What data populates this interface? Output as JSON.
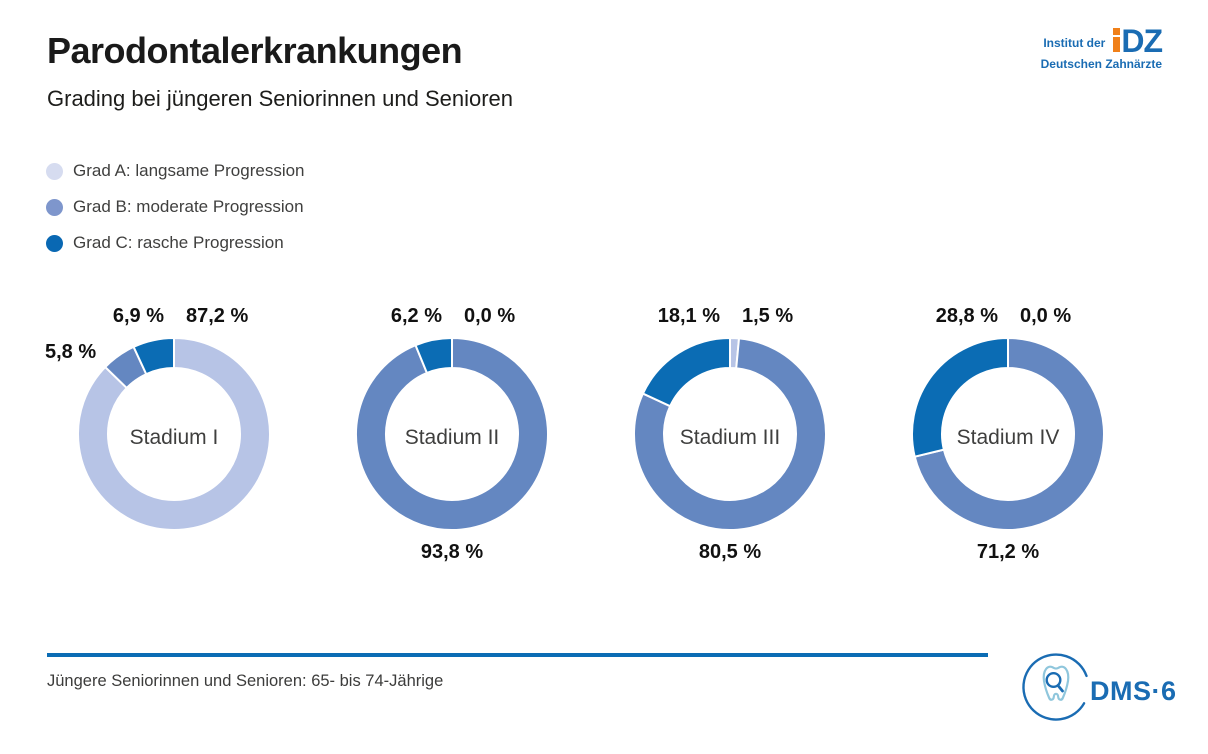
{
  "header": {
    "title": "Parodontalerkrankungen",
    "subtitle": "Grading bei jüngeren Seniorinnen und Senioren"
  },
  "logo_idz": {
    "line1": "Institut der",
    "line2": "Deutschen Zahnärzte",
    "mark_dz": "DZ",
    "blue": "#1a6cb3",
    "orange": "#f08019"
  },
  "legend": {
    "items": [
      {
        "label": "Grad A: langsame Progression",
        "color": "#d6dcf0"
      },
      {
        "label": "Grad B: moderate Progression",
        "color": "#7e96cc"
      },
      {
        "label": "Grad C: rasche Progression",
        "color": "#0968b3"
      }
    ]
  },
  "chart_data": {
    "type": "pie",
    "subtype": "donut",
    "unit": "%",
    "segments_order": [
      "Grad A: langsame Progression",
      "Grad B: moderate Progression",
      "Grad C: rasche Progression"
    ],
    "colors": {
      "grad_a": "#b7c4e6",
      "grad_b": "#6487c1",
      "grad_c": "#0b6cb4"
    },
    "start_angle": "12 o'clock, clockwise",
    "charts": [
      {
        "name": "Stadium I",
        "grad_a": 87.2,
        "grad_b": 5.8,
        "grad_c": 6.9,
        "label_left": "5,8 %",
        "label_top_left": "6,9 %",
        "label_top_right": "87,2 %",
        "label_bottom": ""
      },
      {
        "name": "Stadium II",
        "grad_a": 0.0,
        "grad_b": 93.8,
        "grad_c": 6.2,
        "label_left": "",
        "label_top_left": "6,2 %",
        "label_top_right": "0,0 %",
        "label_bottom": "93,8 %"
      },
      {
        "name": "Stadium III",
        "grad_a": 1.5,
        "grad_b": 80.5,
        "grad_c": 18.1,
        "label_left": "",
        "label_top_left": "18,1 %",
        "label_top_right": "1,5 %",
        "label_bottom": "80,5 %"
      },
      {
        "name": "Stadium IV",
        "grad_a": 0.0,
        "grad_b": 71.2,
        "grad_c": 28.8,
        "label_left": "",
        "label_top_left": "28,8 %",
        "label_top_right": "0,0 %",
        "label_bottom": "71,2 %"
      }
    ]
  },
  "footer": {
    "note": "Jüngere Seniorinnen und Senioren: 65- bis 74-Jährige",
    "rule_color": "#0b6cb4"
  },
  "logo_dms": {
    "text": "DMS·6",
    "blue": "#1a6cb3",
    "light_blue": "#8fc6dc"
  }
}
